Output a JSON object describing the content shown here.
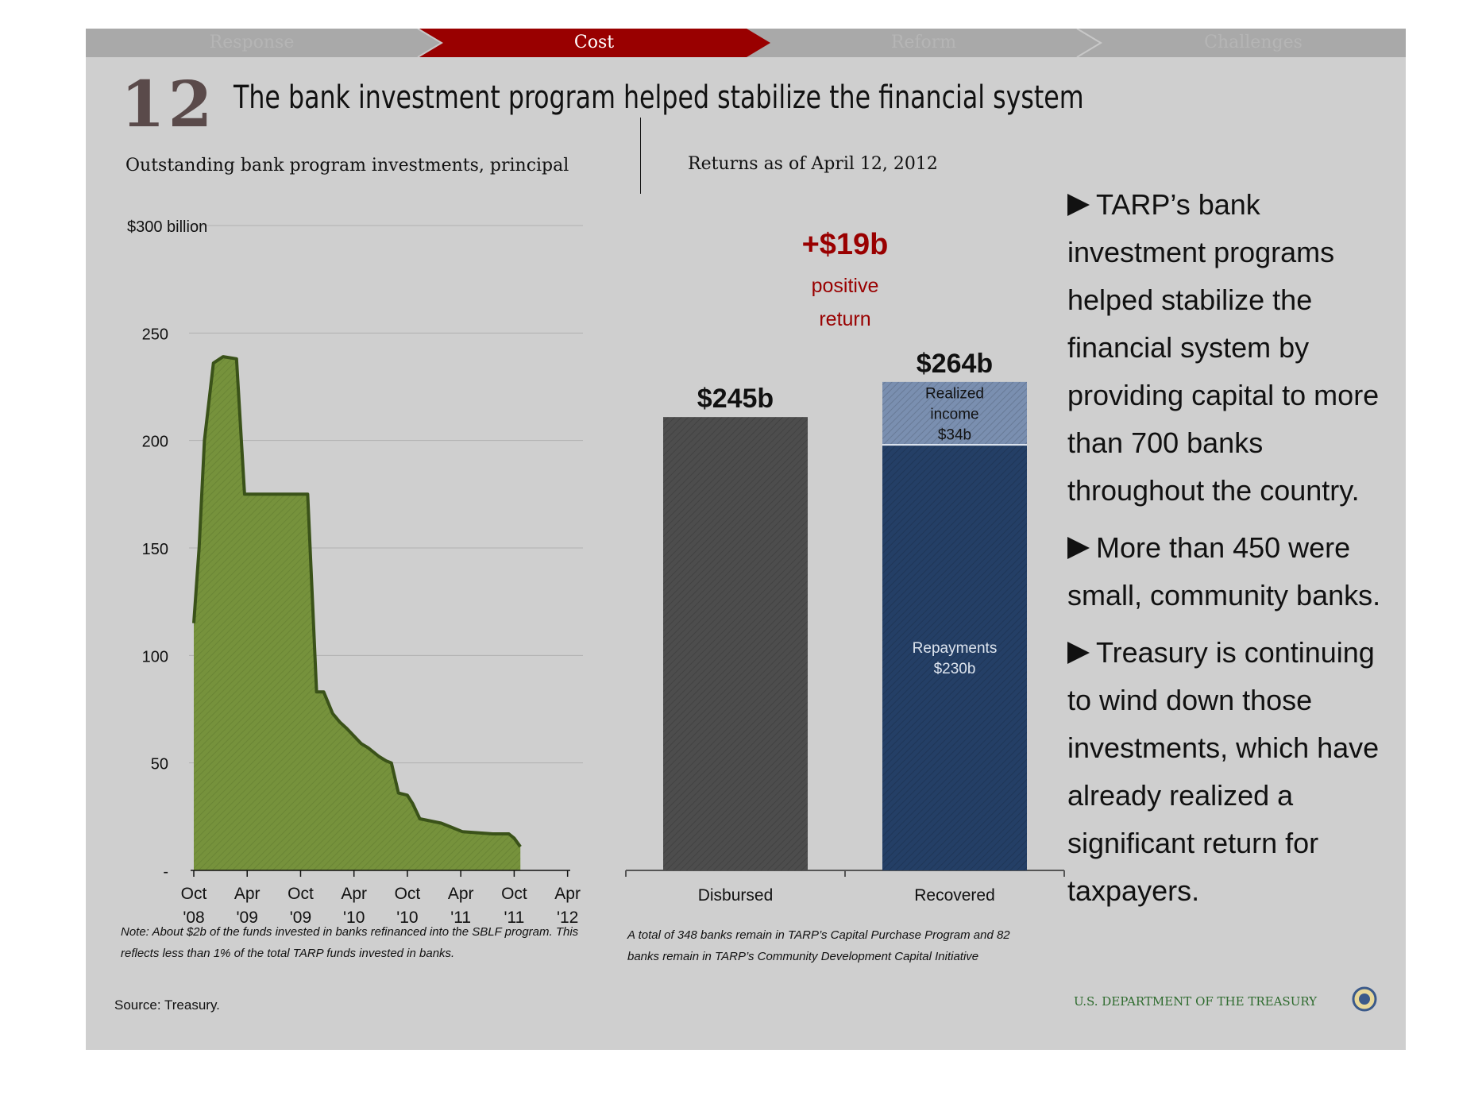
{
  "nav": {
    "tabs": [
      {
        "label": "Response"
      },
      {
        "label": "Cost"
      },
      {
        "label": "Reform"
      },
      {
        "label": "Challenges"
      }
    ],
    "active_index": 1,
    "active_color": "#990000"
  },
  "slide": {
    "number": "12",
    "title": "The bank investment program helped stabilize the financial system"
  },
  "left_chart": {
    "subtitle": "Outstanding bank program investments, principal",
    "note": "Note: About $2b of the funds invested in banks refinanced into the SBLF program. This reflects less than 1% of the total TARP funds invested in banks."
  },
  "right_chart": {
    "subtitle": "Returns as of April 12, 2012",
    "note": "A total of 348 banks remain in TARP’s Capital Purchase Program and 82 banks remain in TARP’s Community Development Capital Initiative"
  },
  "bullets": [
    "TARP’s bank investment programs helped stabilize the financial system by providing capital to more than 700 banks throughout the country.",
    "More than 450 were small, community banks.",
    "Treasury is continuing to wind down those investments, which have already realized a significant return for taxpayers."
  ],
  "footer": {
    "source": "Source: Treasury.",
    "department": "U.S. DEPARTMENT OF THE TREASURY"
  },
  "chart_data": [
    {
      "type": "area",
      "title": "Outstanding bank program investments, principal",
      "ylim": [
        0,
        300
      ],
      "yticks": [
        {
          "value": 0,
          "label": "-"
        },
        {
          "value": 50,
          "label": "50"
        },
        {
          "value": 100,
          "label": "100"
        },
        {
          "value": 150,
          "label": "150"
        },
        {
          "value": 200,
          "label": "200"
        },
        {
          "value": 250,
          "label": "250"
        },
        {
          "value": 300,
          "label": "$300 billion"
        }
      ],
      "xticks": [
        {
          "t": 0,
          "line1": "Oct",
          "line2": "'08"
        },
        {
          "t": 6,
          "line1": "Apr",
          "line2": "'09"
        },
        {
          "t": 12,
          "line1": "Oct",
          "line2": "'09"
        },
        {
          "t": 18,
          "line1": "Apr",
          "line2": "'10"
        },
        {
          "t": 24,
          "line1": "Oct",
          "line2": "'10"
        },
        {
          "t": 30,
          "line1": "Apr",
          "line2": "'11"
        },
        {
          "t": 36,
          "line1": "Oct",
          "line2": "'11"
        },
        {
          "t": 42,
          "line1": "Apr",
          "line2": "'12"
        }
      ],
      "xlim": [
        0,
        42.3
      ],
      "series": [
        {
          "color": "#76923c",
          "points": [
            [
              0,
              115
            ],
            [
              0.6,
              150
            ],
            [
              1.2,
              200
            ],
            [
              2.2,
              236
            ],
            [
              3.3,
              239
            ],
            [
              4.8,
              238
            ],
            [
              5.7,
              175
            ],
            [
              6.4,
              175
            ],
            [
              8.6,
              175
            ],
            [
              9.0,
              175
            ],
            [
              10.2,
              175
            ],
            [
              11.2,
              175
            ],
            [
              11.8,
              175
            ],
            [
              12.2,
              175
            ],
            [
              12.8,
              175
            ],
            [
              13.8,
              83
            ],
            [
              14.6,
              83
            ],
            [
              15.6,
              73
            ],
            [
              16.4,
              69
            ],
            [
              17.2,
              66
            ],
            [
              18.8,
              59
            ],
            [
              19.6,
              57
            ],
            [
              20.8,
              53
            ],
            [
              21.6,
              51
            ],
            [
              22.2,
              50
            ],
            [
              23.0,
              36
            ],
            [
              24.0,
              35
            ],
            [
              24.6,
              31
            ],
            [
              25.4,
              24
            ],
            [
              27.8,
              22
            ],
            [
              29.0,
              20
            ],
            [
              30.2,
              18
            ],
            [
              33.6,
              17
            ],
            [
              35.4,
              17
            ],
            [
              36.0,
              15
            ],
            [
              36.7,
              11
            ]
          ]
        }
      ]
    },
    {
      "type": "bar",
      "title": "Returns as of April 12, 2012",
      "categories": [
        "Disbursed",
        "Recovered"
      ],
      "ylim": [
        0,
        280
      ],
      "series": [
        {
          "name": "Disbursed",
          "values": [
            245,
            0
          ],
          "color": "#4d4d4d"
        },
        {
          "name": "Repayments",
          "values": [
            0,
            230
          ],
          "color": "#243f66",
          "label": "Repayments\n$230b"
        },
        {
          "name": "Realized income",
          "values": [
            0,
            34
          ],
          "color": "#7a8fb0",
          "label": "Realized\nincome\n$34b"
        }
      ],
      "totals": [
        "$245b",
        "$264b"
      ],
      "difference": {
        "value": "+$19b",
        "caption": "positive\nreturn",
        "color": "#990000"
      }
    }
  ]
}
